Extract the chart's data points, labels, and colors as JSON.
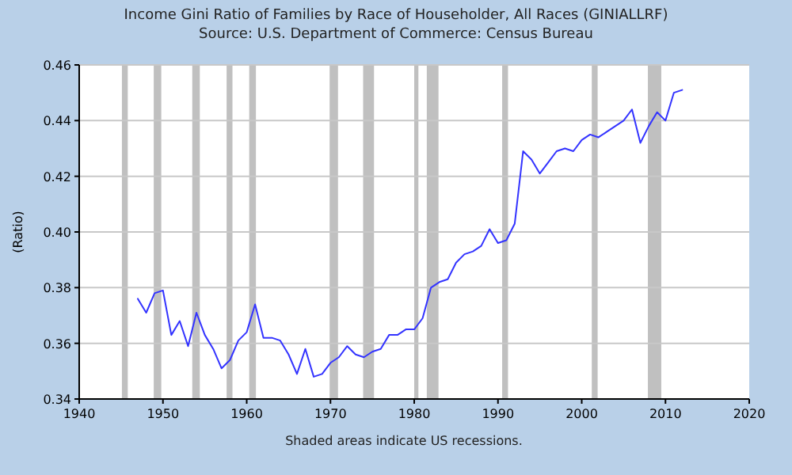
{
  "chart_data": {
    "type": "line",
    "title": "Income Gini Ratio of Families by Race of Householder, All Races (GINIALLRF)",
    "subtitle": "Source: U.S. Department of Commerce: Census Bureau",
    "ylabel": "(Ratio)",
    "annotations": [
      "Shaded areas indicate US recessions."
    ],
    "x": [
      1947,
      1948,
      1949,
      1950,
      1951,
      1952,
      1953,
      1954,
      1955,
      1956,
      1957,
      1958,
      1959,
      1960,
      1961,
      1962,
      1963,
      1964,
      1965,
      1966,
      1967,
      1968,
      1969,
      1970,
      1971,
      1972,
      1973,
      1974,
      1975,
      1976,
      1977,
      1978,
      1979,
      1980,
      1981,
      1982,
      1983,
      1984,
      1985,
      1986,
      1987,
      1988,
      1989,
      1990,
      1991,
      1992,
      1993,
      1994,
      1995,
      1996,
      1997,
      1998,
      1999,
      2000,
      2001,
      2002,
      2003,
      2004,
      2005,
      2006,
      2007,
      2008,
      2009,
      2010,
      2011,
      2012
    ],
    "series": [
      {
        "color": "#3333ff",
        "values": [
          0.376,
          0.371,
          0.378,
          0.379,
          0.363,
          0.368,
          0.359,
          0.371,
          0.363,
          0.358,
          0.351,
          0.354,
          0.361,
          0.364,
          0.374,
          0.362,
          0.362,
          0.361,
          0.356,
          0.349,
          0.358,
          0.348,
          0.349,
          0.353,
          0.355,
          0.359,
          0.356,
          0.355,
          0.357,
          0.358,
          0.363,
          0.363,
          0.365,
          0.365,
          0.369,
          0.38,
          0.382,
          0.383,
          0.389,
          0.392,
          0.393,
          0.395,
          0.401,
          0.396,
          0.397,
          0.403,
          0.429,
          0.426,
          0.421,
          0.425,
          0.429,
          0.43,
          0.429,
          0.433,
          0.435,
          0.434,
          0.436,
          0.438,
          0.44,
          0.444,
          0.432,
          0.438,
          0.443,
          0.44,
          0.45,
          0.451
        ]
      }
    ],
    "xlim": [
      1940,
      2020
    ],
    "xticks": [
      1940,
      1950,
      1960,
      1970,
      1980,
      1990,
      2000,
      2010,
      2020
    ],
    "ylim": [
      0.34,
      0.46
    ],
    "yticks": [
      0.34,
      0.36,
      0.38,
      {
        "value": 0.4,
        "label": "0.40"
      },
      0.42,
      0.44,
      0.46
    ],
    "grid": "y",
    "line_style": "solid",
    "marker": "none",
    "bands": [
      {
        "axis": "x",
        "from": 1945.1,
        "to": 1945.8,
        "color": "#c0c0c0"
      },
      {
        "axis": "x",
        "from": 1948.9,
        "to": 1949.8,
        "color": "#c0c0c0"
      },
      {
        "axis": "x",
        "from": 1953.5,
        "to": 1954.4,
        "color": "#c0c0c0"
      },
      {
        "axis": "x",
        "from": 1957.6,
        "to": 1958.3,
        "color": "#c0c0c0"
      },
      {
        "axis": "x",
        "from": 1960.3,
        "to": 1961.1,
        "color": "#c0c0c0"
      },
      {
        "axis": "x",
        "from": 1969.9,
        "to": 1970.9,
        "color": "#c0c0c0"
      },
      {
        "axis": "x",
        "from": 1973.9,
        "to": 1975.2,
        "color": "#c0c0c0"
      },
      {
        "axis": "x",
        "from": 1980.0,
        "to": 1980.5,
        "color": "#c0c0c0"
      },
      {
        "axis": "x",
        "from": 1981.5,
        "to": 1982.9,
        "color": "#c0c0c0"
      },
      {
        "axis": "x",
        "from": 1990.5,
        "to": 1991.2,
        "color": "#c0c0c0"
      },
      {
        "axis": "x",
        "from": 2001.2,
        "to": 2001.9,
        "color": "#c0c0c0"
      },
      {
        "axis": "x",
        "from": 2007.9,
        "to": 2009.5,
        "color": "#c0c0c0"
      }
    ]
  }
}
